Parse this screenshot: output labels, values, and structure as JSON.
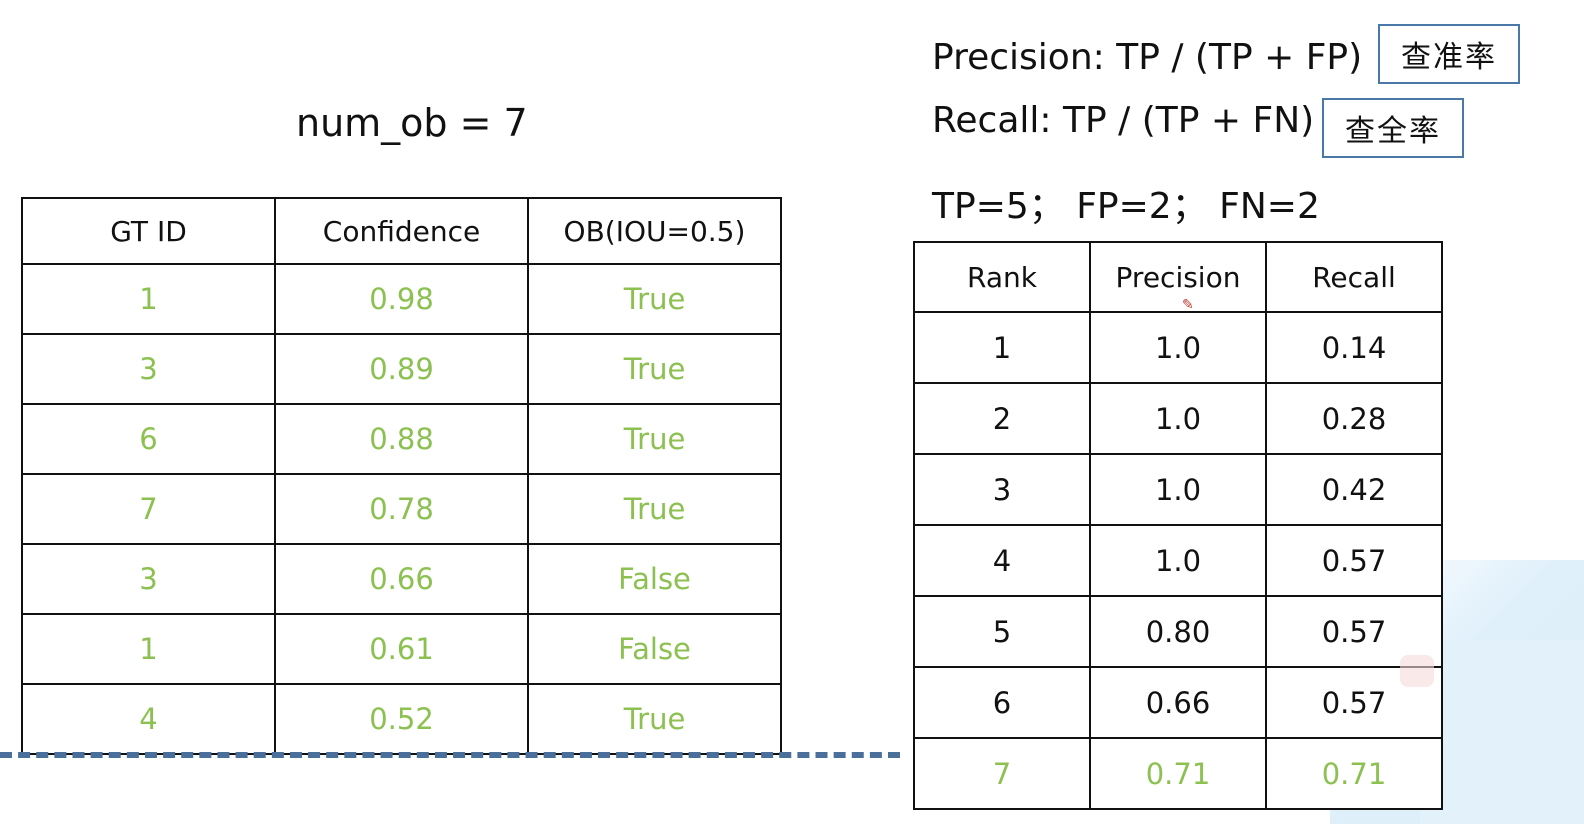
{
  "num_ob_label": "num_ob = 7",
  "formulas": {
    "precision": "Precision: TP / (TP + FP)",
    "recall": "Recall: TP / (TP + FN)",
    "counts": "TP=5； FP=2； FN=2"
  },
  "cn_labels": {
    "precision": "查准率",
    "recall": "查全率"
  },
  "gt_table": {
    "headers": [
      "GT ID",
      "Confidence",
      "OB(IOU=0.5)"
    ],
    "rows": [
      [
        "1",
        "0.98",
        "True"
      ],
      [
        "3",
        "0.89",
        "True"
      ],
      [
        "6",
        "0.88",
        "True"
      ],
      [
        "7",
        "0.78",
        "True"
      ],
      [
        "3",
        "0.66",
        "False"
      ],
      [
        "1",
        "0.61",
        "False"
      ],
      [
        "4",
        "0.52",
        "True"
      ]
    ]
  },
  "rank_table": {
    "headers": [
      "Rank",
      "Precision",
      "Recall"
    ],
    "rows": [
      [
        "1",
        "1.0",
        "0.14"
      ],
      [
        "2",
        "1.0",
        "0.28"
      ],
      [
        "3",
        "1.0",
        "0.42"
      ],
      [
        "4",
        "1.0",
        "0.57"
      ],
      [
        "5",
        "0.80",
        "0.57"
      ],
      [
        "6",
        "0.66",
        "0.57"
      ],
      [
        "7",
        "0.71",
        "0.71"
      ]
    ],
    "highlight_row_index": 6
  },
  "colors": {
    "value_green": "#8cc152",
    "box_border": "#4a78a8",
    "dash_line": "#4a6f9a"
  },
  "icons": {
    "cursor": "pen-cursor-icon",
    "float": "float-action-icon"
  }
}
